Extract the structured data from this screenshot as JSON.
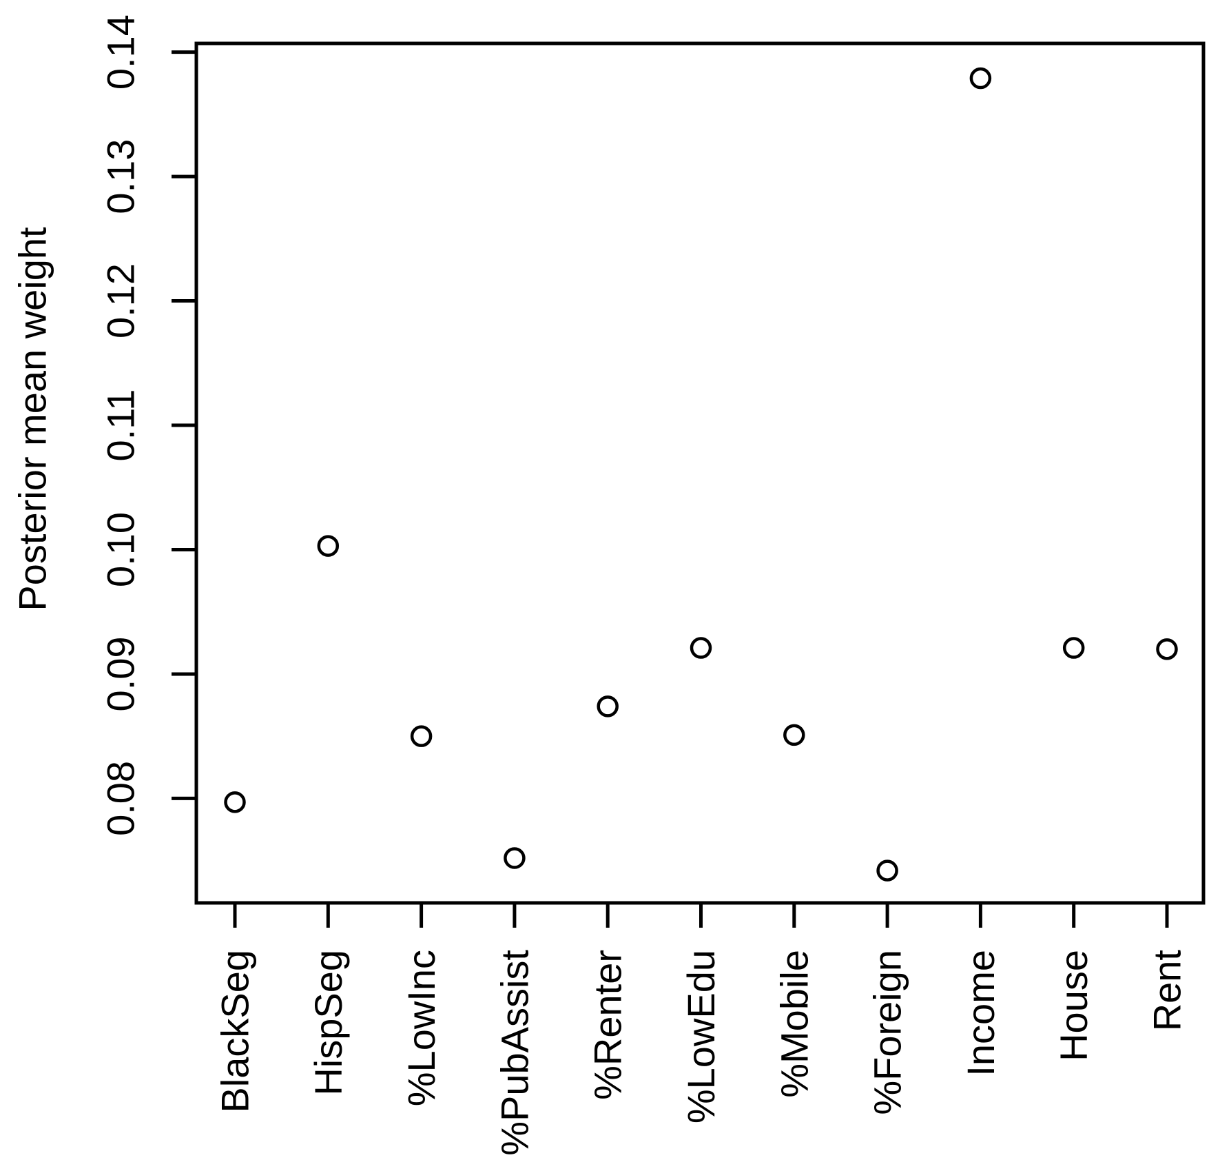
{
  "chart_data": {
    "type": "scatter",
    "title": "",
    "xlabel": "",
    "ylabel": "Posterior mean weight",
    "categories": [
      "BlackSeg",
      "HispSeg",
      "%LowInc",
      "%PubAssist",
      "%Renter",
      "%LowEdu",
      "%Mobile",
      "%Foreign",
      "Income",
      "House",
      "Rent"
    ],
    "values": [
      0.0797,
      0.1003,
      0.085,
      0.0752,
      0.0874,
      0.0921,
      0.0851,
      0.0742,
      0.1379,
      0.0921,
      0.092
    ],
    "yticks": [
      0.08,
      0.09,
      0.1,
      0.11,
      0.12,
      0.13,
      0.14
    ],
    "ytick_labels": [
      "0.08",
      "0.09",
      "0.10",
      "0.11",
      "0.12",
      "0.13",
      "0.14"
    ],
    "ylim": [
      0.0716,
      0.1407
    ],
    "marker": "open-circle",
    "marker_color": "#000000",
    "axis_color": "#000000",
    "background_color": "#ffffff",
    "grid": false,
    "legend": null
  }
}
